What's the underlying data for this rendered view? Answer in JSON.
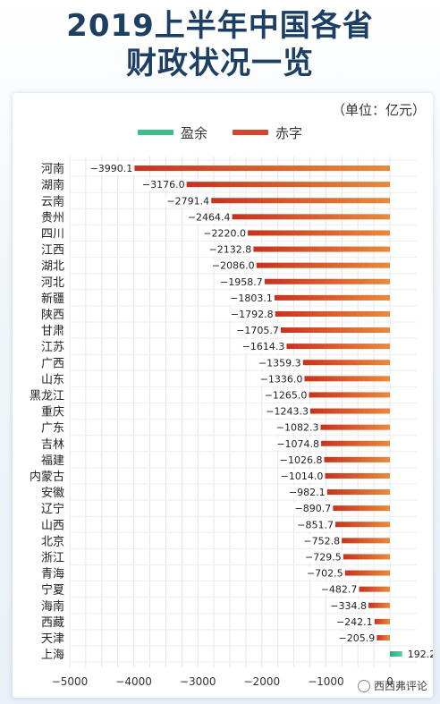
{
  "title_line1": "2019上半年中国各省",
  "title_line2": "财政状况一览",
  "unit": "（单位：亿元）",
  "watermark": "西西弗评论",
  "colors": {
    "surplus": "#3cc08a",
    "deficit": "#d2462c",
    "deficit_light": "#e4873e"
  },
  "chart_data": {
    "type": "bar",
    "orientation": "horizontal",
    "categories": [
      "河南",
      "湖南",
      "云南",
      "贵州",
      "四川",
      "江西",
      "湖北",
      "河北",
      "新疆",
      "陕西",
      "甘肃",
      "江苏",
      "广西",
      "山东",
      "黑龙江",
      "重庆",
      "广东",
      "吉林",
      "福建",
      "内蒙古",
      "安徽",
      "辽宁",
      "山西",
      "北京",
      "浙江",
      "青海",
      "宁夏",
      "海南",
      "西藏",
      "天津",
      "上海"
    ],
    "values": [
      -3990.1,
      -3176.0,
      -2791.4,
      -2464.4,
      -2220.0,
      -2132.8,
      -2086.0,
      -1958.7,
      -1803.1,
      -1792.8,
      -1705.7,
      -1614.3,
      -1359.3,
      -1336.0,
      -1265.0,
      -1243.3,
      -1082.3,
      -1074.8,
      -1026.8,
      -1014.0,
      -982.1,
      -890.7,
      -851.7,
      -752.8,
      -729.5,
      -702.5,
      -482.7,
      -334.8,
      -242.1,
      -205.9,
      192.2
    ],
    "value_labels": [
      "−3990.1",
      "−3176.0",
      "−2791.4",
      "−2464.4",
      "−2220.0",
      "−2132.8",
      "−2086.0",
      "−1958.7",
      "−1803.1",
      "−1792.8",
      "−1705.7",
      "−1614.3",
      "−1359.3",
      "−1336.0",
      "−1265.0",
      "−1243.3",
      "−1082.3",
      "−1074.8",
      "−1026.8",
      "−1014.0",
      "−982.1",
      "−890.7",
      "−851.7",
      "−752.8",
      "−729.5",
      "−702.5",
      "−482.7",
      "−334.8",
      "−242.1",
      "−205.9",
      "192.2"
    ],
    "legend": [
      {
        "name": "盈余",
        "color": "#3cc08a"
      },
      {
        "name": "赤字",
        "color": "#d2462c"
      }
    ],
    "xlim": [
      -5000,
      200
    ],
    "xticks": [
      -5000,
      -4000,
      -3000,
      -2000,
      -1000,
      0
    ],
    "xtick_labels": [
      "−5000",
      "−4000",
      "−3000",
      "−2000",
      "−1000",
      "0"
    ],
    "grid": true,
    "legend_position": "top"
  }
}
